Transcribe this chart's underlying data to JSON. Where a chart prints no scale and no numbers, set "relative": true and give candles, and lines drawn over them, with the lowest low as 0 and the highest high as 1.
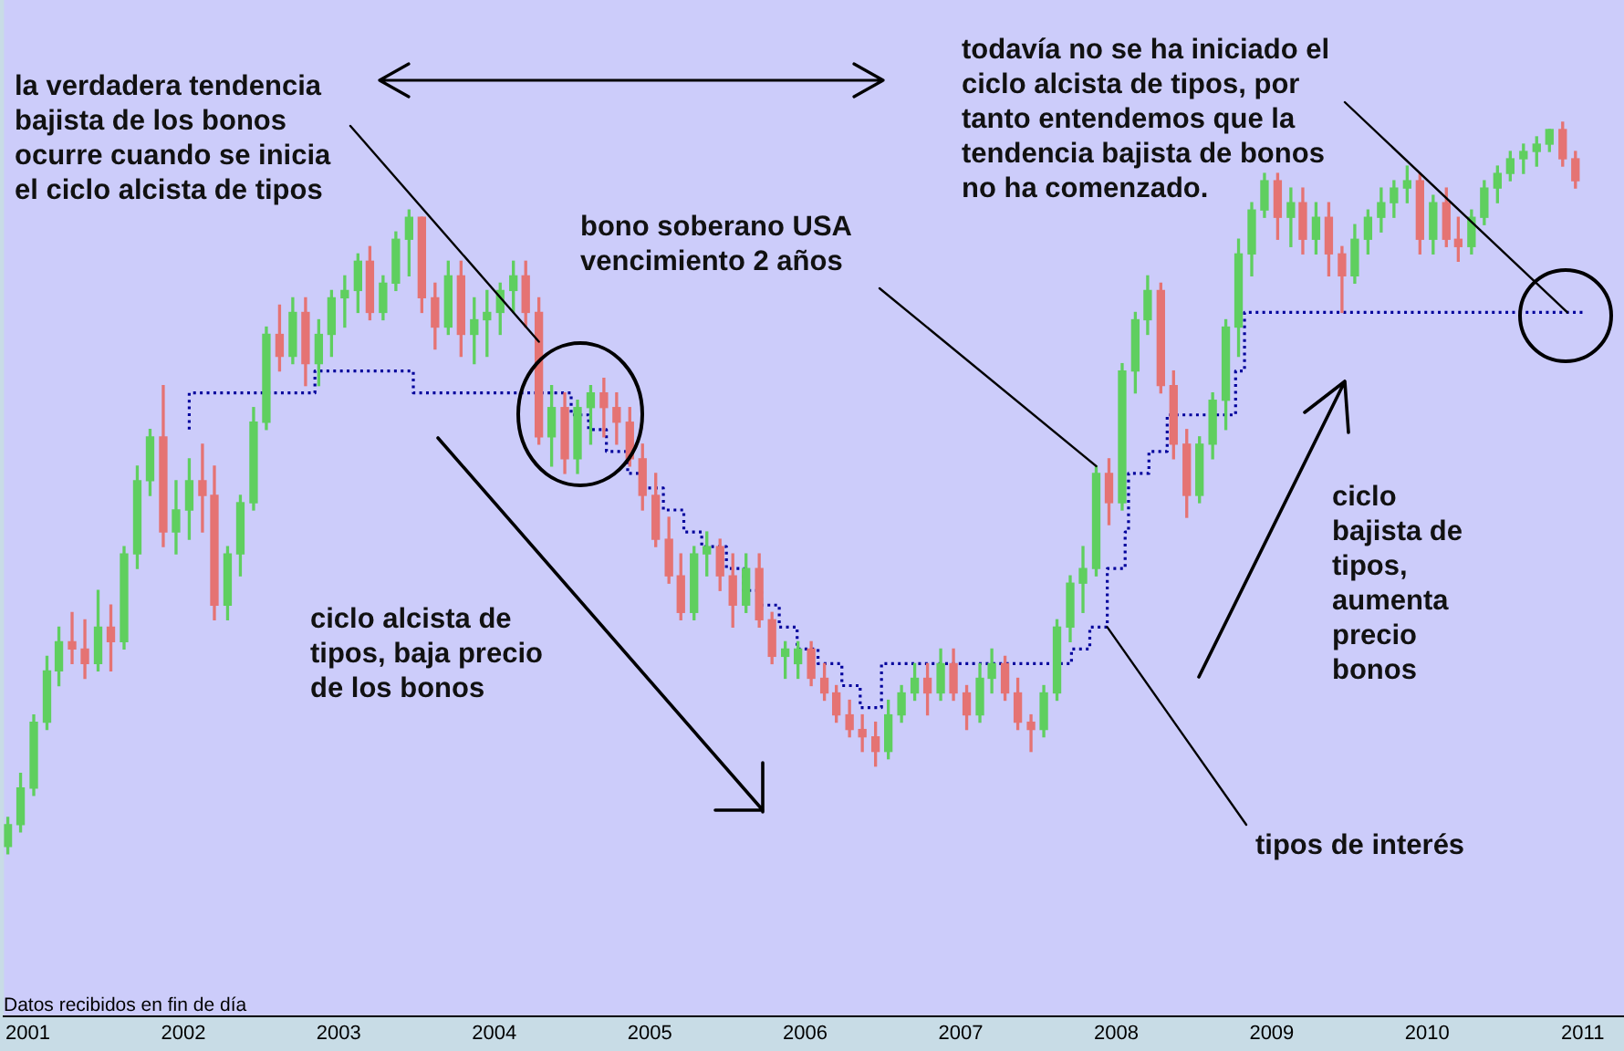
{
  "chart_data": {
    "type": "candlestick",
    "relative": true,
    "x": [
      "2000-11-15",
      "2000-12-15",
      "2001-01-15",
      "2001-02-15",
      "2001-03-15",
      "2001-04-15",
      "2001-05-15",
      "2001-06-15",
      "2001-07-15",
      "2001-08-15",
      "2001-09-15",
      "2001-10-15",
      "2001-11-15",
      "2001-12-15",
      "2002-01-15",
      "2002-02-15",
      "2002-03-15",
      "2002-04-15",
      "2002-05-15",
      "2002-06-15",
      "2002-07-15",
      "2002-08-15",
      "2002-09-15",
      "2002-10-15",
      "2002-11-15",
      "2002-12-15",
      "2003-01-15",
      "2003-02-15",
      "2003-03-15",
      "2003-04-15",
      "2003-05-15",
      "2003-06-15",
      "2003-07-15",
      "2003-08-15",
      "2003-09-15",
      "2003-10-15",
      "2003-11-15",
      "2003-12-15",
      "2004-01-15",
      "2004-02-15",
      "2004-03-15",
      "2004-04-15",
      "2004-05-15",
      "2004-06-15",
      "2004-07-15",
      "2004-08-15",
      "2004-09-15",
      "2004-10-15",
      "2004-11-15",
      "2004-12-15",
      "2005-01-15",
      "2005-02-15",
      "2005-03-15",
      "2005-04-15",
      "2005-05-15",
      "2005-06-15",
      "2005-07-15",
      "2005-08-15",
      "2005-09-15",
      "2005-10-15",
      "2005-11-15",
      "2005-12-15",
      "2006-01-15",
      "2006-02-15",
      "2006-03-15",
      "2006-04-15",
      "2006-05-15",
      "2006-06-15",
      "2006-07-15",
      "2006-08-15",
      "2006-09-15",
      "2006-10-15",
      "2006-11-15",
      "2006-12-15",
      "2007-01-15",
      "2007-02-15",
      "2007-03-15",
      "2007-04-15",
      "2007-05-15",
      "2007-06-15",
      "2007-07-15",
      "2007-08-15",
      "2007-09-15",
      "2007-10-15",
      "2007-11-15",
      "2007-12-15",
      "2008-01-15",
      "2008-02-15",
      "2008-03-15",
      "2008-04-15",
      "2008-05-15",
      "2008-06-15",
      "2008-07-15",
      "2008-08-15",
      "2008-09-15",
      "2008-10-15",
      "2008-11-15",
      "2008-12-15",
      "2009-01-15",
      "2009-02-15",
      "2009-03-15",
      "2009-04-15",
      "2009-05-15",
      "2009-06-15",
      "2009-07-15",
      "2009-08-15",
      "2009-09-15",
      "2009-10-15",
      "2009-11-15",
      "2009-12-15",
      "2010-01-15",
      "2010-02-15",
      "2010-03-15",
      "2010-04-15",
      "2010-05-15",
      "2010-06-15",
      "2010-07-15",
      "2010-08-15",
      "2010-09-15",
      "2010-10-15",
      "2010-11-15",
      "2010-12-15"
    ],
    "ohlc": [
      [
        0.01,
        0.05,
        0,
        0.04
      ],
      [
        0.04,
        0.11,
        0.03,
        0.09
      ],
      [
        0.09,
        0.19,
        0.08,
        0.18
      ],
      [
        0.18,
        0.27,
        0.17,
        0.25
      ],
      [
        0.25,
        0.31,
        0.23,
        0.29
      ],
      [
        0.29,
        0.33,
        0.26,
        0.28
      ],
      [
        0.28,
        0.32,
        0.24,
        0.26
      ],
      [
        0.26,
        0.36,
        0.25,
        0.31
      ],
      [
        0.31,
        0.34,
        0.25,
        0.29
      ],
      [
        0.29,
        0.42,
        0.28,
        0.41
      ],
      [
        0.41,
        0.53,
        0.39,
        0.51
      ],
      [
        0.51,
        0.58,
        0.49,
        0.57
      ],
      [
        0.57,
        0.64,
        0.42,
        0.44
      ],
      [
        0.44,
        0.51,
        0.41,
        0.47
      ],
      [
        0.47,
        0.54,
        0.43,
        0.51
      ],
      [
        0.51,
        0.56,
        0.44,
        0.49
      ],
      [
        0.49,
        0.53,
        0.32,
        0.34
      ],
      [
        0.34,
        0.42,
        0.32,
        0.41
      ],
      [
        0.41,
        0.49,
        0.38,
        0.48
      ],
      [
        0.48,
        0.61,
        0.47,
        0.59
      ],
      [
        0.59,
        0.72,
        0.58,
        0.71
      ],
      [
        0.71,
        0.75,
        0.66,
        0.68
      ],
      [
        0.68,
        0.76,
        0.67,
        0.74
      ],
      [
        0.74,
        0.76,
        0.64,
        0.67
      ],
      [
        0.67,
        0.73,
        0.64,
        0.71
      ],
      [
        0.71,
        0.77,
        0.68,
        0.76
      ],
      [
        0.76,
        0.79,
        0.72,
        0.77
      ],
      [
        0.77,
        0.82,
        0.74,
        0.81
      ],
      [
        0.81,
        0.83,
        0.73,
        0.74
      ],
      [
        0.74,
        0.79,
        0.73,
        0.78
      ],
      [
        0.78,
        0.85,
        0.77,
        0.84
      ],
      [
        0.84,
        0.88,
        0.79,
        0.87
      ],
      [
        0.87,
        0.87,
        0.74,
        0.76
      ],
      [
        0.76,
        0.78,
        0.69,
        0.72
      ],
      [
        0.72,
        0.81,
        0.71,
        0.79
      ],
      [
        0.79,
        0.81,
        0.68,
        0.71
      ],
      [
        0.71,
        0.76,
        0.67,
        0.73
      ],
      [
        0.73,
        0.77,
        0.68,
        0.74
      ],
      [
        0.74,
        0.78,
        0.71,
        0.77
      ],
      [
        0.77,
        0.81,
        0.74,
        0.79
      ],
      [
        0.79,
        0.81,
        0.72,
        0.74
      ],
      [
        0.74,
        0.76,
        0.56,
        0.57
      ],
      [
        0.57,
        0.64,
        0.53,
        0.61
      ],
      [
        0.61,
        0.63,
        0.52,
        0.54
      ],
      [
        0.54,
        0.62,
        0.52,
        0.61
      ],
      [
        0.61,
        0.64,
        0.56,
        0.63
      ],
      [
        0.63,
        0.65,
        0.57,
        0.61
      ],
      [
        0.61,
        0.63,
        0.56,
        0.59
      ],
      [
        0.59,
        0.61,
        0.53,
        0.54
      ],
      [
        0.54,
        0.56,
        0.47,
        0.49
      ],
      [
        0.49,
        0.52,
        0.42,
        0.43
      ],
      [
        0.43,
        0.46,
        0.37,
        0.38
      ],
      [
        0.38,
        0.41,
        0.32,
        0.33
      ],
      [
        0.33,
        0.42,
        0.32,
        0.41
      ],
      [
        0.41,
        0.44,
        0.38,
        0.42
      ],
      [
        0.42,
        0.43,
        0.36,
        0.38
      ],
      [
        0.38,
        0.41,
        0.31,
        0.34
      ],
      [
        0.34,
        0.41,
        0.33,
        0.39
      ],
      [
        0.39,
        0.41,
        0.31,
        0.32
      ],
      [
        0.32,
        0.33,
        0.26,
        0.27
      ],
      [
        0.27,
        0.29,
        0.24,
        0.28
      ],
      [
        0.26,
        0.29,
        0.24,
        0.28
      ],
      [
        0.28,
        0.29,
        0.23,
        0.24
      ],
      [
        0.24,
        0.26,
        0.21,
        0.22
      ],
      [
        0.22,
        0.23,
        0.18,
        0.19
      ],
      [
        0.19,
        0.21,
        0.16,
        0.17
      ],
      [
        0.17,
        0.19,
        0.14,
        0.16
      ],
      [
        0.16,
        0.18,
        0.12,
        0.14
      ],
      [
        0.14,
        0.21,
        0.13,
        0.19
      ],
      [
        0.19,
        0.23,
        0.18,
        0.22
      ],
      [
        0.22,
        0.26,
        0.21,
        0.24
      ],
      [
        0.24,
        0.26,
        0.19,
        0.22
      ],
      [
        0.22,
        0.28,
        0.21,
        0.26
      ],
      [
        0.26,
        0.28,
        0.21,
        0.22
      ],
      [
        0.22,
        0.23,
        0.17,
        0.19
      ],
      [
        0.19,
        0.26,
        0.18,
        0.24
      ],
      [
        0.24,
        0.28,
        0.22,
        0.26
      ],
      [
        0.26,
        0.27,
        0.21,
        0.22
      ],
      [
        0.22,
        0.24,
        0.17,
        0.18
      ],
      [
        0.18,
        0.19,
        0.14,
        0.17
      ],
      [
        0.17,
        0.23,
        0.16,
        0.22
      ],
      [
        0.22,
        0.32,
        0.21,
        0.31
      ],
      [
        0.31,
        0.38,
        0.29,
        0.37
      ],
      [
        0.37,
        0.42,
        0.33,
        0.39
      ],
      [
        0.39,
        0.53,
        0.38,
        0.52
      ],
      [
        0.52,
        0.54,
        0.45,
        0.48
      ],
      [
        0.48,
        0.67,
        0.47,
        0.66
      ],
      [
        0.66,
        0.74,
        0.63,
        0.73
      ],
      [
        0.73,
        0.79,
        0.71,
        0.77
      ],
      [
        0.77,
        0.78,
        0.63,
        0.64
      ],
      [
        0.64,
        0.66,
        0.54,
        0.56
      ],
      [
        0.56,
        0.58,
        0.46,
        0.49
      ],
      [
        0.49,
        0.57,
        0.48,
        0.56
      ],
      [
        0.56,
        0.63,
        0.54,
        0.62
      ],
      [
        0.62,
        0.73,
        0.58,
        0.72
      ],
      [
        0.72,
        0.84,
        0.68,
        0.82
      ],
      [
        0.82,
        0.89,
        0.79,
        0.88
      ],
      [
        0.88,
        0.93,
        0.87,
        0.92
      ],
      [
        0.92,
        0.93,
        0.84,
        0.87
      ],
      [
        0.87,
        0.91,
        0.83,
        0.89
      ],
      [
        0.89,
        0.91,
        0.82,
        0.84
      ],
      [
        0.84,
        0.89,
        0.82,
        0.87
      ],
      [
        0.87,
        0.89,
        0.79,
        0.82
      ],
      [
        0.82,
        0.83,
        0.74,
        0.79
      ],
      [
        0.79,
        0.86,
        0.78,
        0.84
      ],
      [
        0.84,
        0.88,
        0.82,
        0.87
      ],
      [
        0.87,
        0.91,
        0.85,
        0.89
      ],
      [
        0.89,
        0.92,
        0.87,
        0.91
      ],
      [
        0.91,
        0.94,
        0.89,
        0.92
      ],
      [
        0.92,
        0.93,
        0.82,
        0.84
      ],
      [
        0.84,
        0.9,
        0.82,
        0.89
      ],
      [
        0.89,
        0.91,
        0.83,
        0.84
      ],
      [
        0.84,
        0.87,
        0.81,
        0.83
      ],
      [
        0.83,
        0.88,
        0.82,
        0.87
      ],
      [
        0.87,
        0.92,
        0.86,
        0.91
      ],
      [
        0.91,
        0.94,
        0.89,
        0.93
      ],
      [
        0.93,
        0.96,
        0.92,
        0.95
      ],
      [
        0.95,
        0.97,
        0.93,
        0.96
      ],
      [
        0.96,
        0.98,
        0.94,
        0.97
      ],
      [
        0.97,
        0.99,
        0.96,
        0.99
      ],
      [
        0.99,
        1,
        0.94,
        0.95
      ],
      [
        0.95,
        0.96,
        0.91,
        0.92
      ]
    ],
    "colors": [
      "#5fcf5f",
      "#5fcf5f",
      "#5fcf5f",
      "#5fcf5f",
      "#5fcf5f",
      "#e57373",
      "#e57373",
      "#5fcf5f",
      "#e57373",
      "#5fcf5f",
      "#5fcf5f",
      "#5fcf5f",
      "#e57373",
      "#5fcf5f",
      "#5fcf5f",
      "#e57373",
      "#e57373",
      "#5fcf5f",
      "#5fcf5f",
      "#5fcf5f",
      "#5fcf5f",
      "#e57373",
      "#5fcf5f",
      "#e57373",
      "#5fcf5f",
      "#5fcf5f",
      "#5fcf5f",
      "#5fcf5f",
      "#e57373",
      "#5fcf5f",
      "#5fcf5f",
      "#5fcf5f",
      "#e57373",
      "#e57373",
      "#5fcf5f",
      "#e57373",
      "#5fcf5f",
      "#5fcf5f",
      "#5fcf5f",
      "#5fcf5f",
      "#e57373",
      "#e57373",
      "#5fcf5f",
      "#e57373",
      "#5fcf5f",
      "#5fcf5f",
      "#e57373",
      "#e57373",
      "#e57373",
      "#e57373",
      "#e57373",
      "#e57373",
      "#e57373",
      "#5fcf5f",
      "#5fcf5f",
      "#e57373",
      "#e57373",
      "#5fcf5f",
      "#e57373",
      "#e57373",
      "#5fcf5f",
      "#5fcf5f",
      "#e57373",
      "#e57373",
      "#e57373",
      "#e57373",
      "#e57373",
      "#e57373",
      "#5fcf5f",
      "#5fcf5f",
      "#5fcf5f",
      "#e57373",
      "#5fcf5f",
      "#e57373",
      "#e57373",
      "#5fcf5f",
      "#5fcf5f",
      "#e57373",
      "#e57373",
      "#e57373",
      "#5fcf5f",
      "#5fcf5f",
      "#5fcf5f",
      "#5fcf5f",
      "#5fcf5f",
      "#e57373",
      "#5fcf5f",
      "#5fcf5f",
      "#5fcf5f",
      "#e57373",
      "#e57373",
      "#e57373",
      "#5fcf5f",
      "#5fcf5f",
      "#5fcf5f",
      "#5fcf5f",
      "#5fcf5f",
      "#5fcf5f",
      "#e57373",
      "#5fcf5f",
      "#e57373",
      "#5fcf5f",
      "#e57373",
      "#e57373",
      "#5fcf5f",
      "#5fcf5f",
      "#5fcf5f",
      "#5fcf5f",
      "#5fcf5f",
      "#e57373",
      "#5fcf5f",
      "#e57373",
      "#e57373",
      "#5fcf5f",
      "#5fcf5f",
      "#5fcf5f",
      "#5fcf5f",
      "#5fcf5f",
      "#5fcf5f",
      "#5fcf5f",
      "#e57373",
      "#e57373"
    ],
    "series": [
      {
        "type": "step",
        "color": "#00009c",
        "line_style": "dotted",
        "x": [
          "2002-01-15",
          "2002-11-06",
          "2003-06-25",
          "2004-06-30",
          "2004-08-10",
          "2004-09-21",
          "2004-11-10",
          "2004-12-14",
          "2005-02-02",
          "2005-03-22",
          "2005-05-03",
          "2005-06-30",
          "2005-08-09",
          "2005-09-20",
          "2005-11-01",
          "2005-12-13",
          "2006-01-31",
          "2006-03-28",
          "2006-05-10",
          "2006-06-29",
          "2007-09-18",
          "2007-10-31",
          "2007-12-11",
          "2008-01-22",
          "2008-01-30",
          "2008-03-18",
          "2008-04-30",
          "2008-10-08",
          "2008-10-29",
          "2008-12-16",
          "2011-01-05"
        ],
        "values": [
          0.58,
          0.63,
          0.66,
          0.63,
          0.6,
          0.58,
          0.55,
          0.52,
          0.5,
          0.47,
          0.44,
          0.42,
          0.39,
          0.36,
          0.34,
          0.31,
          0.28,
          0.26,
          0.23,
          0.2,
          0.26,
          0.28,
          0.31,
          0.39,
          0.44,
          0.52,
          0.55,
          0.6,
          0.66,
          0.74,
          0.74
        ]
      }
    ],
    "xlim": [
      "2000-11-06",
      "2011-04-08"
    ],
    "xticks": [
      "2001",
      "2002",
      "2003",
      "2004",
      "2005",
      "2006",
      "2007",
      "2008",
      "2009",
      "2010",
      "2011"
    ],
    "annotations": [
      {
        "text": "la verdadera tendencia bajista de los bonos ocurre cuando se inicia el ciclo alcista de tipos",
        "x": "2004-04-15",
        "y": 0.7
      },
      {
        "text": "todavía no se ha iniciado el ciclo alcista de tipos, por tanto entendemos que la tendencia bajista de bonos no ha comenzado.",
        "x": "2010-11-26",
        "y": 0.74
      },
      {
        "text": "bono soberano USA vencimiento 2 años",
        "x": "2007-11-15",
        "y": 0.53
      },
      "ciclo alcista de tipos, baja precio de los bonos",
      "ciclo bajista de tipos, aumenta precio bonos",
      {
        "text": "tipos de interés",
        "x": "2007-12-11",
        "y": 0.31
      },
      "Datos recibidos en fin de día"
    ]
  }
}
